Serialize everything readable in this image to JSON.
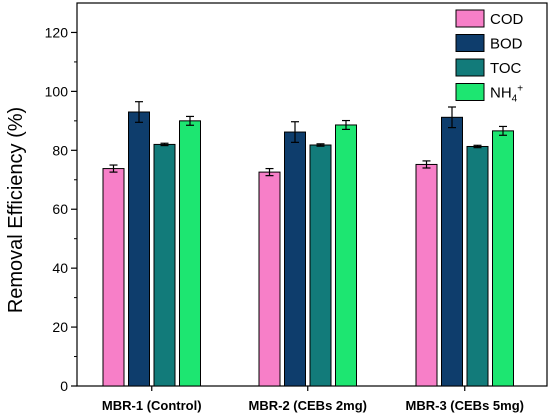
{
  "chart_data": {
    "type": "bar",
    "categories": [
      "MBR-1 (Control)",
      "MBR-2 (CEBs 2mg)",
      "MBR-3 (CEBs 5mg)"
    ],
    "series": [
      {
        "name": "COD",
        "color": "#f77fc8",
        "values": [
          73.8,
          72.6,
          75.2
        ],
        "errors": [
          1.2,
          1.2,
          1.2
        ]
      },
      {
        "name": "BOD",
        "color": "#0e3d6c",
        "values": [
          93.0,
          86.2,
          91.2
        ],
        "errors": [
          3.5,
          3.5,
          3.5
        ]
      },
      {
        "name": "TOC",
        "color": "#127b7a",
        "values": [
          82.0,
          81.8,
          81.3
        ],
        "errors": [
          0.4,
          0.4,
          0.4
        ]
      },
      {
        "name": "NH4+",
        "color": "#1de671",
        "values": [
          90.0,
          88.6,
          86.6
        ],
        "errors": [
          1.5,
          1.5,
          1.5
        ]
      }
    ],
    "legend_labels": {
      "base": "NH",
      "sub": "4",
      "sup": "+"
    },
    "title": "",
    "xlabel": "",
    "ylabel": "Removal Efficiency (%)",
    "ylim": [
      0,
      130
    ],
    "yticks": [
      "0",
      "20",
      "40",
      "60",
      "80",
      "100",
      "120"
    ],
    "legend_position": "top-right",
    "grid": false
  }
}
